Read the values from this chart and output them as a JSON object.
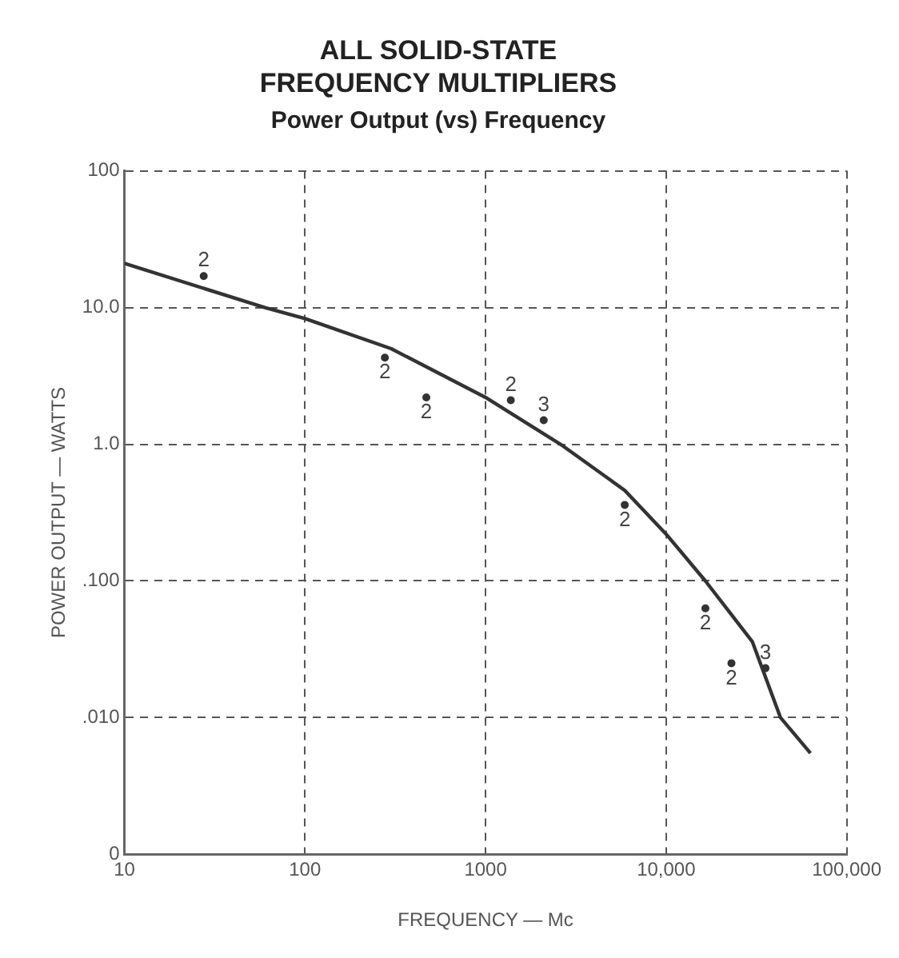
{
  "chart_data": {
    "type": "scatter",
    "title": [
      "ALL SOLID-STATE",
      "FREQUENCY MULTIPLIERS"
    ],
    "subtitle": "Power Output (vs) Frequency",
    "xlabel": "FREQUENCY — Mc",
    "ylabel": "POWER OUTPUT — WATTS",
    "log": "xy",
    "grid": true,
    "legend": false,
    "xlim": [
      10,
      100000
    ],
    "ylim": [
      0.001,
      100
    ],
    "xticks": [
      10,
      100,
      1000,
      {
        "value": 10000,
        "label": "10,000"
      },
      {
        "value": 100000,
        "label": "100,000"
      }
    ],
    "yticks": [
      {
        "value": 0.001,
        "label": "0"
      },
      {
        "value": 0.01,
        "label": ".010"
      },
      {
        "value": 0.1,
        "label": ".100"
      },
      {
        "value": 1,
        "label": "1.0"
      },
      {
        "value": 10,
        "label": "10.0"
      },
      100
    ],
    "series": [
      {
        "type": "line",
        "marker": "none",
        "line_style": "solid",
        "color": "#333333",
        "x": [
          10,
          60,
          100,
          300,
          1000,
          2600,
          5900,
          10000,
          16500,
          30000,
          43000,
          63000
        ],
        "values": [
          21,
          10,
          8.3,
          5.0,
          2.2,
          1.0,
          0.46,
          0.22,
          0.1,
          0.036,
          0.01,
          0.0055
        ]
      },
      {
        "marker": "circle",
        "color": "#333333",
        "x": [
          27.5,
          277,
          470,
          1380,
          2100,
          5900,
          16500,
          23000,
          35500
        ],
        "values": [
          17,
          4.3,
          2.2,
          2.1,
          1.5,
          0.36,
          0.063,
          0.025,
          0.023
        ]
      }
    ],
    "annotations": [
      {
        "text": "2",
        "x": 27.5,
        "y": 17
      },
      {
        "text": "2",
        "x": 277,
        "y": 4.3
      },
      {
        "text": "2",
        "x": 470,
        "y": 2.2
      },
      {
        "text": "2",
        "x": 1380,
        "y": 2.1
      },
      {
        "text": "3",
        "x": 2100,
        "y": 1.5
      },
      {
        "text": "2",
        "x": 5900,
        "y": 0.36
      },
      {
        "text": "2",
        "x": 16500,
        "y": 0.063
      },
      {
        "text": "2",
        "x": 23000,
        "y": 0.025
      },
      {
        "text": "3",
        "x": 35500,
        "y": 0.023
      }
    ]
  }
}
